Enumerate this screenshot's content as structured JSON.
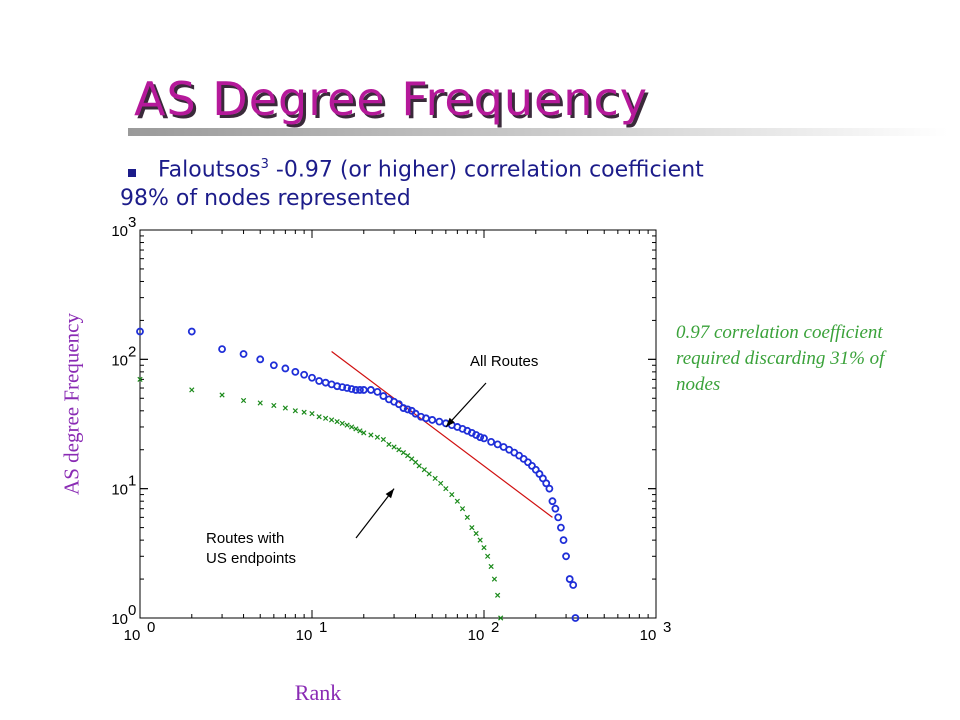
{
  "slide": {
    "title": "AS Degree Frequency",
    "bullet": {
      "name": "Faloutsos",
      "superscript": "3",
      "text": " -0.97 (or higher) correlation coefficient"
    },
    "subline": "98% of nodes represented",
    "side_note": "0.97 correlation coefficient required discarding 31% of nodes",
    "title_color": "#b5199a",
    "text_color": "#1c1c8a",
    "note_color": "#3aa23a",
    "axis_title_color": "#8a2bb4"
  },
  "chart_data": {
    "type": "scatter",
    "xlabel": "Rank",
    "ylabel": "AS degree Frequency",
    "xscale": "log",
    "yscale": "log",
    "xlim": [
      1,
      1000
    ],
    "ylim": [
      1,
      1000
    ],
    "x_ticks": [
      {
        "base": "10",
        "exp": "0",
        "value": 1
      },
      {
        "base": "10",
        "exp": "1",
        "value": 10
      },
      {
        "base": "10",
        "exp": "2",
        "value": 100
      },
      {
        "base": "10",
        "exp": "3",
        "value": 1000
      }
    ],
    "y_ticks": [
      {
        "base": "10",
        "exp": "0",
        "value": 1
      },
      {
        "base": "10",
        "exp": "1",
        "value": 10
      },
      {
        "base": "10",
        "exp": "2",
        "value": 100
      },
      {
        "base": "10",
        "exp": "3",
        "value": 1000
      }
    ],
    "series": [
      {
        "name": "All Routes",
        "marker": "circle",
        "color": "#1f2fd8",
        "points": [
          [
            1,
            164
          ],
          [
            2,
            164
          ],
          [
            3,
            120
          ],
          [
            4,
            110
          ],
          [
            5,
            100
          ],
          [
            6,
            90
          ],
          [
            7,
            85
          ],
          [
            8,
            80
          ],
          [
            9,
            76
          ],
          [
            10,
            72
          ],
          [
            11,
            68
          ],
          [
            12,
            66
          ],
          [
            13,
            64
          ],
          [
            14,
            62
          ],
          [
            15,
            61
          ],
          [
            16,
            60
          ],
          [
            17,
            59
          ],
          [
            18,
            58
          ],
          [
            19,
            58
          ],
          [
            20,
            58
          ],
          [
            22,
            58
          ],
          [
            24,
            56
          ],
          [
            26,
            52
          ],
          [
            28,
            49
          ],
          [
            30,
            47
          ],
          [
            32,
            45
          ],
          [
            34,
            42
          ],
          [
            36,
            41
          ],
          [
            38,
            40
          ],
          [
            40,
            38
          ],
          [
            43,
            36
          ],
          [
            46,
            35
          ],
          [
            50,
            34
          ],
          [
            55,
            33
          ],
          [
            60,
            32
          ],
          [
            65,
            31
          ],
          [
            70,
            30
          ],
          [
            75,
            29
          ],
          [
            80,
            28
          ],
          [
            85,
            27
          ],
          [
            90,
            26
          ],
          [
            95,
            25
          ],
          [
            100,
            24.5
          ],
          [
            110,
            23
          ],
          [
            120,
            22
          ],
          [
            130,
            21
          ],
          [
            140,
            20
          ],
          [
            150,
            19
          ],
          [
            160,
            18
          ],
          [
            170,
            17
          ],
          [
            180,
            16
          ],
          [
            190,
            15
          ],
          [
            200,
            14
          ],
          [
            210,
            13
          ],
          [
            220,
            12
          ],
          [
            230,
            11
          ],
          [
            240,
            10
          ],
          [
            250,
            8
          ],
          [
            260,
            7
          ],
          [
            270,
            6
          ],
          [
            280,
            5
          ],
          [
            290,
            4
          ],
          [
            300,
            3
          ],
          [
            315,
            2
          ],
          [
            330,
            1.8
          ],
          [
            340,
            1
          ]
        ]
      },
      {
        "name": "Routes with US endpoints",
        "marker": "x",
        "color": "#1a8a1a",
        "points": [
          [
            1,
            70
          ],
          [
            2,
            58
          ],
          [
            3,
            53
          ],
          [
            4,
            48
          ],
          [
            5,
            46
          ],
          [
            6,
            44
          ],
          [
            7,
            42
          ],
          [
            8,
            40
          ],
          [
            9,
            39
          ],
          [
            10,
            38
          ],
          [
            11,
            36
          ],
          [
            12,
            35
          ],
          [
            13,
            34
          ],
          [
            14,
            33
          ],
          [
            15,
            32
          ],
          [
            16,
            31
          ],
          [
            17,
            30
          ],
          [
            18,
            29
          ],
          [
            19,
            28
          ],
          [
            20,
            27
          ],
          [
            22,
            26
          ],
          [
            24,
            25
          ],
          [
            26,
            24
          ],
          [
            28,
            22
          ],
          [
            30,
            21
          ],
          [
            32,
            20
          ],
          [
            34,
            19
          ],
          [
            36,
            18
          ],
          [
            38,
            17
          ],
          [
            40,
            16
          ],
          [
            42,
            15
          ],
          [
            45,
            14
          ],
          [
            48,
            13
          ],
          [
            52,
            12
          ],
          [
            56,
            11
          ],
          [
            60,
            10
          ],
          [
            65,
            9
          ],
          [
            70,
            8
          ],
          [
            75,
            7
          ],
          [
            80,
            6
          ],
          [
            85,
            5
          ],
          [
            90,
            4.5
          ],
          [
            95,
            4
          ],
          [
            100,
            3.5
          ],
          [
            105,
            3
          ],
          [
            110,
            2.5
          ],
          [
            115,
            2
          ],
          [
            120,
            1.5
          ],
          [
            125,
            1
          ]
        ]
      }
    ],
    "fit_line": {
      "name": "regression",
      "color": "#d01010",
      "from": [
        13,
        115
      ],
      "to": [
        250,
        6
      ]
    },
    "annotations": [
      {
        "text": "All Routes",
        "arrow_to": [
          60,
          30
        ]
      },
      {
        "text": "Routes with US endpoints",
        "lines": [
          "Routes with",
          "US endpoints"
        ],
        "arrow_to": [
          30,
          10
        ]
      }
    ]
  }
}
